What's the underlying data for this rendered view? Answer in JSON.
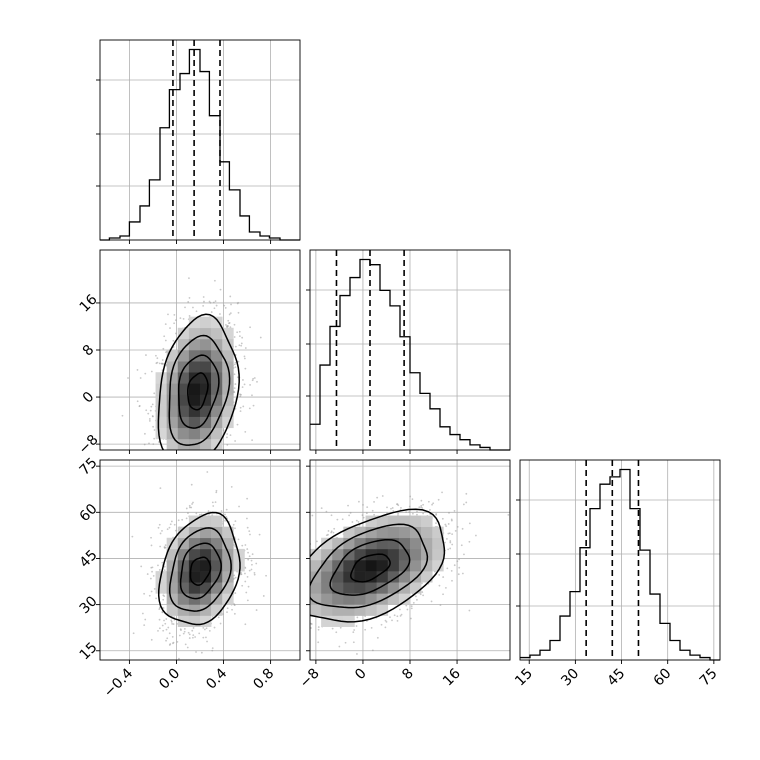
{
  "chart_data": {
    "type": "corner",
    "title": "",
    "parameters": [
      {
        "name": "",
        "range": [
          -0.65,
          1.05
        ],
        "ticks": [
          "−0.4",
          "0.0",
          "0.4",
          "0.8"
        ],
        "tick_values": [
          -0.4,
          0.0,
          0.4,
          0.8
        ],
        "quantiles": [
          -0.03,
          0.15,
          0.37
        ]
      },
      {
        "name": "",
        "range": [
          -9,
          25
        ],
        "ticks": [
          "−8",
          "0",
          "8",
          "16"
        ],
        "tick_values": [
          -8,
          0,
          8,
          16
        ],
        "quantiles": [
          -4.5,
          1.2,
          7.0
        ]
      },
      {
        "name": "",
        "range": [
          12,
          77
        ],
        "ticks": [
          "15",
          "30",
          "45",
          "60",
          "75"
        ],
        "tick_values": [
          15,
          30,
          45,
          60,
          75
        ],
        "quantiles": [
          33.5,
          42,
          50.5
        ]
      }
    ],
    "histograms": [
      {
        "bin_edges": [
          -0.65,
          -0.57,
          -0.48,
          -0.4,
          -0.31,
          -0.23,
          -0.14,
          -0.06,
          0.03,
          0.11,
          0.2,
          0.28,
          0.37,
          0.45,
          0.54,
          0.62,
          0.71,
          0.79,
          0.88,
          0.96,
          1.05
        ],
        "counts": [
          0,
          1,
          2,
          9,
          17,
          30,
          56,
          75,
          83,
          95,
          84,
          62,
          39,
          25,
          12,
          4,
          2,
          1,
          0,
          0
        ]
      },
      {
        "bin_edges": [
          -9,
          -7.3,
          -5.6,
          -3.9,
          -2.2,
          -0.5,
          1.2,
          2.9,
          4.6,
          6.3,
          8,
          9.7,
          11.4,
          13.1,
          14.8,
          16.5,
          18.2,
          19.9,
          21.6,
          23.3,
          25
        ],
        "counts": [
          10,
          33,
          48,
          60,
          67,
          74,
          72,
          62,
          56,
          44,
          30,
          22,
          16,
          9,
          6,
          4,
          2,
          1,
          0,
          0
        ]
      },
      {
        "bin_edges": [
          12,
          15.25,
          18.5,
          21.75,
          25,
          28.25,
          31.5,
          34.75,
          38,
          41.25,
          44.5,
          47.75,
          51,
          54.25,
          57.5,
          60.75,
          64,
          67.25,
          70.5,
          73.75,
          77
        ],
        "counts": [
          1,
          2,
          4,
          8,
          18,
          28,
          46,
          62,
          72,
          75,
          78,
          62,
          45,
          27,
          15,
          8,
          4,
          2,
          1,
          0
        ]
      }
    ],
    "contour_panels": [
      {
        "x_param": 0,
        "y_param": 1,
        "center": [
          0.18,
          1.0
        ],
        "sigma": [
          0.17,
          6.2
        ],
        "rho": 0.22
      },
      {
        "x_param": 0,
        "y_param": 2,
        "center": [
          0.2,
          41
        ],
        "sigma": [
          0.17,
          9.0
        ],
        "rho": 0.24
      },
      {
        "x_param": 1,
        "y_param": 2,
        "center": [
          1.2,
          42
        ],
        "sigma": [
          6.6,
          9.0
        ],
        "rho": 0.45
      }
    ],
    "grid": true
  }
}
